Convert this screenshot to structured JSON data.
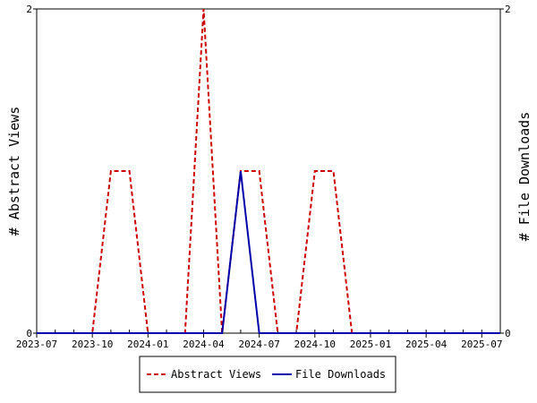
{
  "chart_data": {
    "type": "line",
    "title": "",
    "xlabel": "",
    "ylabel": "# Abstract Views",
    "ylabel_right": "# File Downloads",
    "x": [
      "2023-07",
      "2023-08",
      "2023-09",
      "2023-10",
      "2023-11",
      "2023-12",
      "2024-01",
      "2024-02",
      "2024-03",
      "2024-04",
      "2024-05",
      "2024-06",
      "2024-07",
      "2024-08",
      "2024-09",
      "2024-10",
      "2024-11",
      "2024-12",
      "2025-01",
      "2025-02",
      "2025-03",
      "2025-04",
      "2025-05",
      "2025-06",
      "2025-07",
      "2025-08"
    ],
    "xticks": [
      "2023-07",
      "2023-10",
      "2024-01",
      "2024-04",
      "2024-07",
      "2024-10",
      "2025-01",
      "2025-04",
      "2025-07"
    ],
    "ylim": [
      0,
      2
    ],
    "ylim_right": [
      0,
      2
    ],
    "yticks": [
      "0",
      "2"
    ],
    "yticks_right": [
      "0",
      "2"
    ],
    "legend_position": "bottom",
    "grid": false,
    "series": [
      {
        "name": "Abstract Views",
        "axis": "left",
        "color": "#cc0000",
        "dash": "dashed",
        "values": [
          0,
          0,
          0,
          0,
          1,
          1,
          0,
          0,
          0,
          2,
          0,
          1,
          1,
          0,
          0,
          1,
          1,
          0,
          0,
          0,
          0,
          0,
          0,
          0,
          0,
          0
        ]
      },
      {
        "name": "File Downloads",
        "axis": "right",
        "color": "#0000aa",
        "dash": "solid",
        "values": [
          0,
          0,
          0,
          0,
          0,
          0,
          0,
          0,
          0,
          0,
          0,
          1,
          0,
          0,
          0,
          0,
          0,
          0,
          0,
          0,
          0,
          0,
          0,
          0,
          0,
          0
        ]
      }
    ]
  }
}
